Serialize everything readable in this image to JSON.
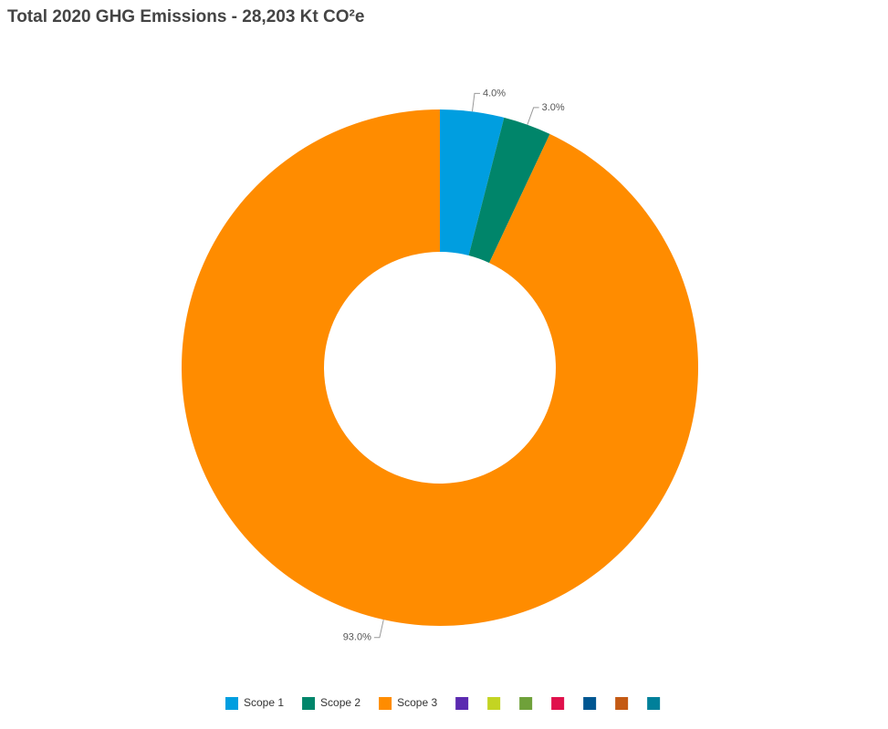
{
  "chart_data": {
    "type": "donut",
    "title": "Total 2020 GHG Emissions - 28,203 Kt CO²e",
    "categories": [
      "Scope 1",
      "Scope 2",
      "Scope 3",
      null,
      null,
      null,
      null,
      null,
      null,
      null
    ],
    "values": [
      4,
      3,
      93,
      null,
      null,
      null,
      null,
      null,
      null,
      null
    ],
    "value_labels": [
      "4.0%",
      "3.0%",
      "93.0%",
      null,
      null,
      null,
      null,
      null,
      null,
      null
    ],
    "colors": [
      "#009ee0",
      "#00856a",
      "#ff8c00",
      "#5b2ab0",
      "#c3d422",
      "#6fa13a",
      "#e0114c",
      "#005691",
      "#c45a14",
      "#00809a"
    ],
    "legend": "bottom"
  }
}
